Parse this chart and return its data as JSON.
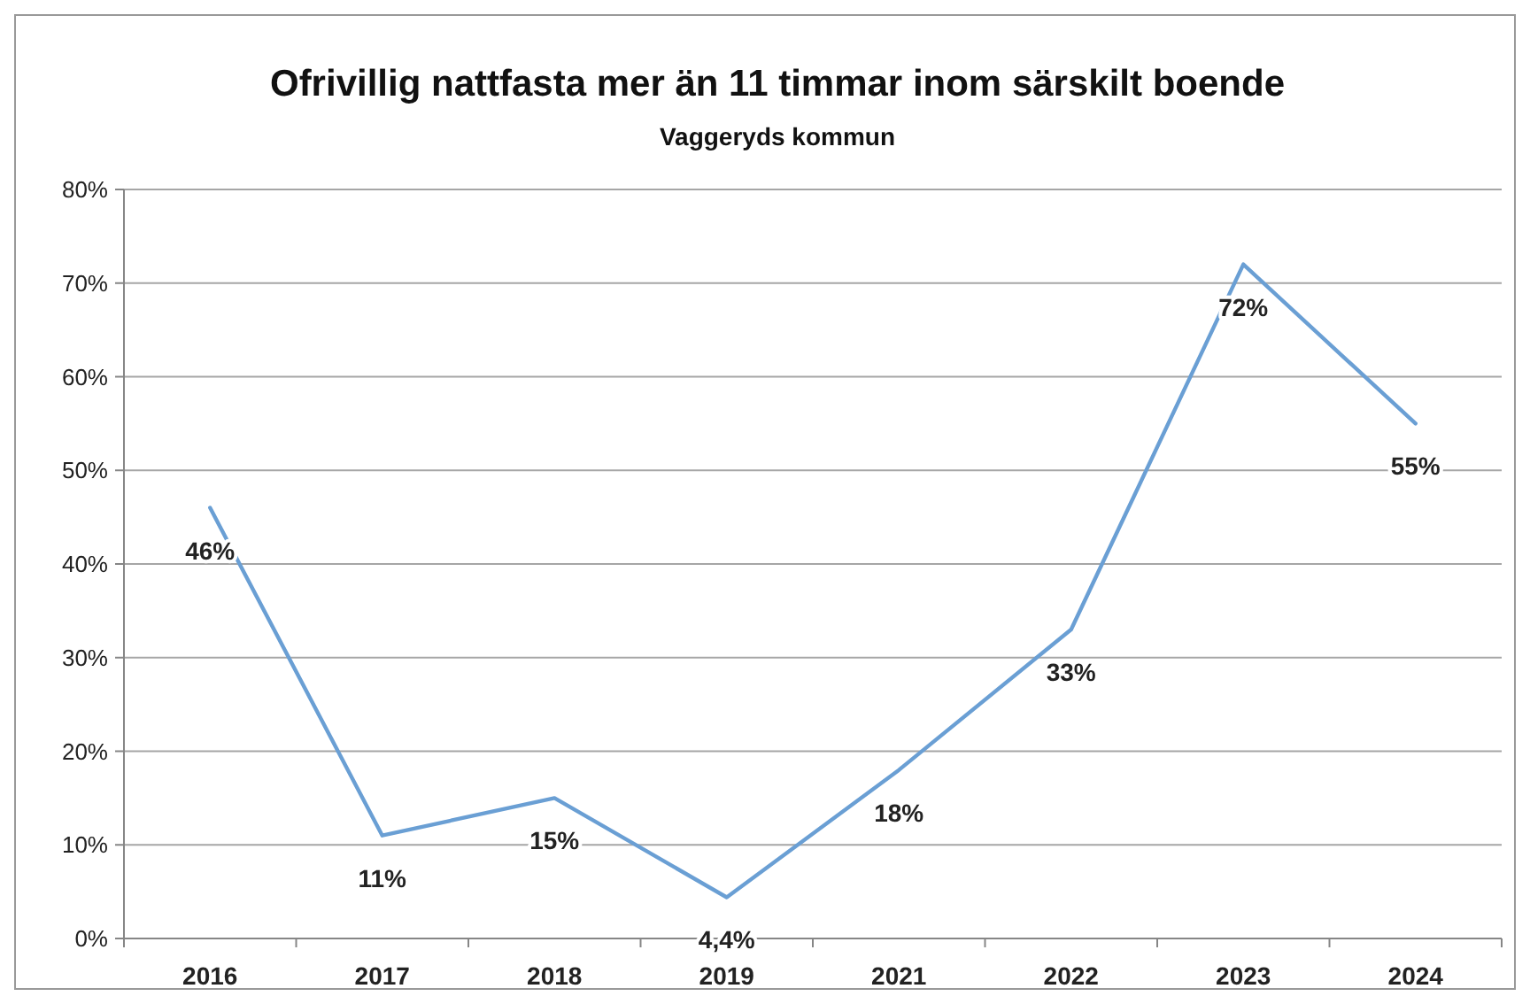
{
  "chart_data": {
    "type": "line",
    "title": "Ofrivillig nattfasta mer än 11 timmar inom särskilt boende",
    "subtitle": "Vaggeryds kommun",
    "categories": [
      "2016",
      "2017",
      "2018",
      "2019",
      "2021",
      "2022",
      "2023",
      "2024"
    ],
    "series": [
      {
        "color": "#6a9fd4",
        "values": [
          46,
          11,
          15,
          4.4,
          18,
          33,
          72,
          55
        ],
        "value_labels": [
          "46%",
          "11%",
          "15%",
          "4,4%",
          "18%",
          "33%",
          "72%",
          "55%"
        ]
      }
    ],
    "ylim": [
      0,
      80
    ],
    "yticks": [
      {
        "value": 0,
        "label": "0%"
      },
      {
        "value": 10,
        "label": "10%"
      },
      {
        "value": 20,
        "label": "20%"
      },
      {
        "value": 30,
        "label": "30%"
      },
      {
        "value": 40,
        "label": "40%"
      },
      {
        "value": 50,
        "label": "50%"
      },
      {
        "value": 60,
        "label": "60%"
      },
      {
        "value": 70,
        "label": "70%"
      },
      {
        "value": 80,
        "label": "80%"
      }
    ],
    "grid": "y",
    "marker": "none",
    "line_style": "solid"
  }
}
